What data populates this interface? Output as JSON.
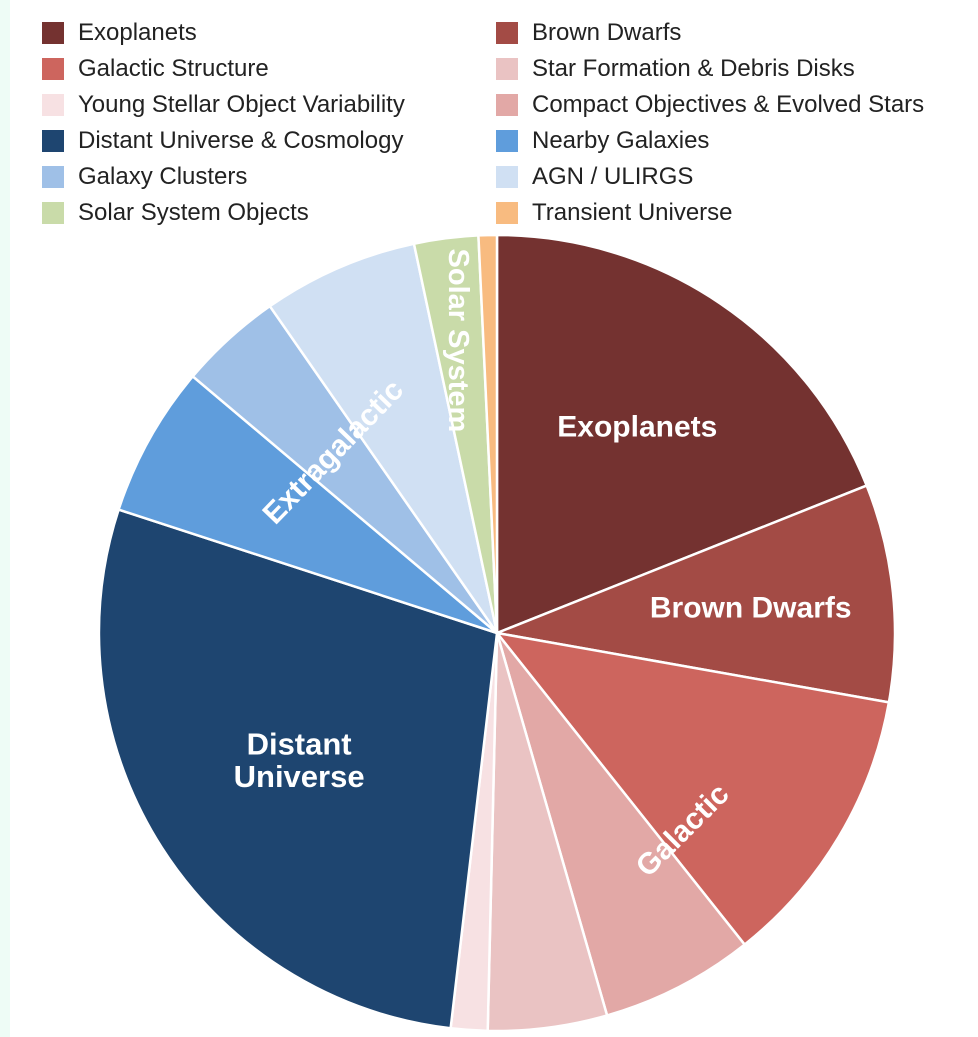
{
  "chart_data": {
    "type": "pie",
    "legend_position": "top",
    "series": [
      {
        "name": "Exoplanets",
        "value": 20.4,
        "color": "#743230"
      },
      {
        "name": "Brown Dwarfs",
        "value": 9.5,
        "color": "#a34b45"
      },
      {
        "name": "Galactic Structure",
        "value": 12.4,
        "color": "#cd655e"
      },
      {
        "name": "Compact Objectives & Evolved Stars",
        "value": 6.7,
        "color": "#e2a8a6"
      },
      {
        "name": "Star Formation & Debris Disks",
        "value": 5.2,
        "color": "#eac3c3"
      },
      {
        "name": "Young Stellar Object Variability",
        "value": 1.6,
        "color": "#f7e1e3"
      },
      {
        "name": "Distant Universe & Cosmology",
        "value": 30.3,
        "color": "#1e4570"
      },
      {
        "name": "Nearby Galaxies",
        "value": 6.6,
        "color": "#5f9ddc"
      },
      {
        "name": "Galaxy Clusters",
        "value": 4.5,
        "color": "#9fc0e7"
      },
      {
        "name": "AGN / ULIRGS",
        "value": 6.8,
        "color": "#d0e0f3"
      },
      {
        "name": "Solar System Objects",
        "value": 2.8,
        "color": "#c9dba9"
      },
      {
        "name": "Transient Universe",
        "value": 0.8,
        "color": "#f8bb80"
      }
    ],
    "legend_order": [
      "Exoplanets",
      "Brown Dwarfs",
      "Galactic Structure",
      "Star Formation & Debris Disks",
      "Young Stellar Object Variability",
      "Compact Objectives & Evolved Stars",
      "Distant Universe & Cosmology",
      "Nearby Galaxies",
      "Galaxy Clusters",
      "AGN / ULIRGS",
      "Solar System Objects",
      "Transient Universe"
    ],
    "group_labels": [
      {
        "lines": [
          "Exoplanets"
        ]
      },
      {
        "lines": [
          "Brown Dwarfs"
        ]
      },
      {
        "lines": [
          "Galactic"
        ]
      },
      {
        "lines": [
          "Distant",
          "Universe"
        ]
      },
      {
        "lines": [
          "Extragalactic"
        ]
      },
      {
        "lines": [
          "Solar System"
        ]
      }
    ]
  }
}
